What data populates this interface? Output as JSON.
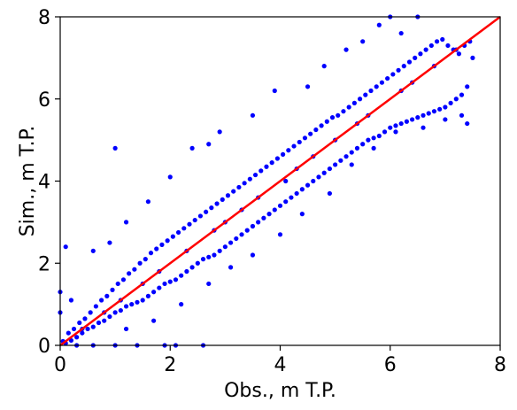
{
  "chart_data": {
    "type": "scatter",
    "title": "",
    "xlabel": "Obs., m T.P.",
    "ylabel": "Sim., m T.P.",
    "xlim": [
      0,
      8
    ],
    "ylim": [
      0,
      8
    ],
    "xticks": [
      "0",
      "2",
      "4",
      "6",
      "8"
    ],
    "yticks": [
      "0",
      "2",
      "4",
      "6",
      "8"
    ],
    "grid": false,
    "legend": "none",
    "marker_color": "#0000ff",
    "reference_line": {
      "x": [
        0,
        8
      ],
      "y": [
        0,
        8
      ],
      "color": "#ff0000"
    },
    "series": [
      {
        "values": [
          [
            0.05,
            0.1
          ],
          [
            0.1,
            0.05
          ],
          [
            0.15,
            0.3
          ],
          [
            0.2,
            0.12
          ],
          [
            0.25,
            0.4
          ],
          [
            0.3,
            0.2
          ],
          [
            0.35,
            0.55
          ],
          [
            0.4,
            0.3
          ],
          [
            0.45,
            0.65
          ],
          [
            0.5,
            0.4
          ],
          [
            0.55,
            0.8
          ],
          [
            0.6,
            0.45
          ],
          [
            0.65,
            0.95
          ],
          [
            0.7,
            0.55
          ],
          [
            0.75,
            1.1
          ],
          [
            0.8,
            0.6
          ],
          [
            0.85,
            1.2
          ],
          [
            0.9,
            0.7
          ],
          [
            0.95,
            1.35
          ],
          [
            1.0,
            0.8
          ],
          [
            1.05,
            1.5
          ],
          [
            1.1,
            0.85
          ],
          [
            1.15,
            1.6
          ],
          [
            1.2,
            0.95
          ],
          [
            1.25,
            1.75
          ],
          [
            1.3,
            1.0
          ],
          [
            1.35,
            1.85
          ],
          [
            1.4,
            1.05
          ],
          [
            1.45,
            2.0
          ],
          [
            1.5,
            1.1
          ],
          [
            1.55,
            2.1
          ],
          [
            1.6,
            1.2
          ],
          [
            1.65,
            2.25
          ],
          [
            1.7,
            1.3
          ],
          [
            1.75,
            2.35
          ],
          [
            1.8,
            1.4
          ],
          [
            1.85,
            2.45
          ],
          [
            1.9,
            1.5
          ],
          [
            1.95,
            2.55
          ],
          [
            2.0,
            1.55
          ],
          [
            2.05,
            2.65
          ],
          [
            2.1,
            1.6
          ],
          [
            2.15,
            2.75
          ],
          [
            2.2,
            1.7
          ],
          [
            2.25,
            2.85
          ],
          [
            2.3,
            1.8
          ],
          [
            2.35,
            2.95
          ],
          [
            2.4,
            1.9
          ],
          [
            2.45,
            3.05
          ],
          [
            2.5,
            2.0
          ],
          [
            2.55,
            3.15
          ],
          [
            2.6,
            2.1
          ],
          [
            2.65,
            3.25
          ],
          [
            2.7,
            2.15
          ],
          [
            2.75,
            3.35
          ],
          [
            2.8,
            2.2
          ],
          [
            2.85,
            3.45
          ],
          [
            2.9,
            2.3
          ],
          [
            2.95,
            3.55
          ],
          [
            3.0,
            2.4
          ],
          [
            3.05,
            3.65
          ],
          [
            3.1,
            2.5
          ],
          [
            3.15,
            3.75
          ],
          [
            3.2,
            2.6
          ],
          [
            3.25,
            3.85
          ],
          [
            3.3,
            2.7
          ],
          [
            3.35,
            3.95
          ],
          [
            3.4,
            2.8
          ],
          [
            3.45,
            4.05
          ],
          [
            3.5,
            2.9
          ],
          [
            3.55,
            4.15
          ],
          [
            3.6,
            3.0
          ],
          [
            3.65,
            4.25
          ],
          [
            3.7,
            3.1
          ],
          [
            3.75,
            4.35
          ],
          [
            3.8,
            3.2
          ],
          [
            3.85,
            4.45
          ],
          [
            3.9,
            3.3
          ],
          [
            3.95,
            4.55
          ],
          [
            4.0,
            3.4
          ],
          [
            4.05,
            4.65
          ],
          [
            4.1,
            3.5
          ],
          [
            4.15,
            4.75
          ],
          [
            4.2,
            3.6
          ],
          [
            4.25,
            4.85
          ],
          [
            4.3,
            3.7
          ],
          [
            4.35,
            4.95
          ],
          [
            4.4,
            3.8
          ],
          [
            4.45,
            5.05
          ],
          [
            4.5,
            3.9
          ],
          [
            4.55,
            5.15
          ],
          [
            4.6,
            4.0
          ],
          [
            4.65,
            5.25
          ],
          [
            4.7,
            4.1
          ],
          [
            4.75,
            5.35
          ],
          [
            4.8,
            4.2
          ],
          [
            4.85,
            5.45
          ],
          [
            4.9,
            4.3
          ],
          [
            4.95,
            5.55
          ],
          [
            5.0,
            4.4
          ],
          [
            5.05,
            5.6
          ],
          [
            5.1,
            4.5
          ],
          [
            5.15,
            5.7
          ],
          [
            5.2,
            4.6
          ],
          [
            5.25,
            5.8
          ],
          [
            5.3,
            4.7
          ],
          [
            5.35,
            5.9
          ],
          [
            5.4,
            4.8
          ],
          [
            5.45,
            6.0
          ],
          [
            5.5,
            4.9
          ],
          [
            5.55,
            6.1
          ],
          [
            5.6,
            5.0
          ],
          [
            5.65,
            6.2
          ],
          [
            5.7,
            5.05
          ],
          [
            5.75,
            6.3
          ],
          [
            5.8,
            5.1
          ],
          [
            5.85,
            6.4
          ],
          [
            5.9,
            5.2
          ],
          [
            5.95,
            6.5
          ],
          [
            6.0,
            5.3
          ],
          [
            6.05,
            6.6
          ],
          [
            6.1,
            5.35
          ],
          [
            6.15,
            6.7
          ],
          [
            6.2,
            5.4
          ],
          [
            6.25,
            6.8
          ],
          [
            6.3,
            5.45
          ],
          [
            6.35,
            6.9
          ],
          [
            6.4,
            5.5
          ],
          [
            6.45,
            7.0
          ],
          [
            6.5,
            5.55
          ],
          [
            6.55,
            7.1
          ],
          [
            6.6,
            5.6
          ],
          [
            6.65,
            7.2
          ],
          [
            6.7,
            5.65
          ],
          [
            6.75,
            7.3
          ],
          [
            6.8,
            5.7
          ],
          [
            6.85,
            7.4
          ],
          [
            6.9,
            5.75
          ],
          [
            6.95,
            7.45
          ],
          [
            7.0,
            5.8
          ],
          [
            7.05,
            7.3
          ],
          [
            7.1,
            5.9
          ],
          [
            7.15,
            7.2
          ],
          [
            7.2,
            6.0
          ],
          [
            7.25,
            7.1
          ],
          [
            7.3,
            6.1
          ],
          [
            7.35,
            7.3
          ],
          [
            7.4,
            6.3
          ],
          [
            7.45,
            7.4
          ],
          [
            7.5,
            7.0
          ],
          [
            7.3,
            5.6
          ],
          [
            7.4,
            5.4
          ],
          [
            1.0,
            4.8
          ],
          [
            6.0,
            8.0
          ],
          [
            6.5,
            8.0
          ],
          [
            5.8,
            7.8
          ],
          [
            6.2,
            7.6
          ],
          [
            5.5,
            7.4
          ],
          [
            5.2,
            7.2
          ],
          [
            4.8,
            6.8
          ],
          [
            4.5,
            6.3
          ],
          [
            3.9,
            6.2
          ],
          [
            3.5,
            5.6
          ],
          [
            2.9,
            5.2
          ],
          [
            2.7,
            4.9
          ],
          [
            2.4,
            4.8
          ],
          [
            2.0,
            4.1
          ],
          [
            1.6,
            3.5
          ],
          [
            1.2,
            3.0
          ],
          [
            0.9,
            2.5
          ],
          [
            0.6,
            2.3
          ],
          [
            0.1,
            2.4
          ],
          [
            0.2,
            1.1
          ],
          [
            0.0,
            1.3
          ],
          [
            0.0,
            0.8
          ],
          [
            0.3,
            0.0
          ],
          [
            0.6,
            0.0
          ],
          [
            1.0,
            0.0
          ],
          [
            1.4,
            0.0
          ],
          [
            1.9,
            0.0
          ],
          [
            2.1,
            0.0
          ],
          [
            2.6,
            0.0
          ],
          [
            1.2,
            0.4
          ],
          [
            1.7,
            0.6
          ],
          [
            2.2,
            1.0
          ],
          [
            2.7,
            1.5
          ],
          [
            3.1,
            1.9
          ],
          [
            3.5,
            2.2
          ],
          [
            4.0,
            2.7
          ],
          [
            4.4,
            3.2
          ],
          [
            4.9,
            3.7
          ],
          [
            5.3,
            4.4
          ],
          [
            5.7,
            4.8
          ],
          [
            6.1,
            5.2
          ],
          [
            6.6,
            5.3
          ],
          [
            7.0,
            5.5
          ],
          [
            2.3,
            2.3
          ],
          [
            3.0,
            3.0
          ],
          [
            4.1,
            4.0
          ],
          [
            5.0,
            5.0
          ],
          [
            1.5,
            1.5
          ],
          [
            0.8,
            0.8
          ],
          [
            3.6,
            3.6
          ],
          [
            4.6,
            4.6
          ],
          [
            5.6,
            5.6
          ],
          [
            6.4,
            6.4
          ],
          [
            6.8,
            6.8
          ],
          [
            2.8,
            2.8
          ],
          [
            1.8,
            1.8
          ],
          [
            1.1,
            1.1
          ],
          [
            0.4,
            0.4
          ],
          [
            3.3,
            3.3
          ],
          [
            4.3,
            4.3
          ],
          [
            5.4,
            5.4
          ],
          [
            6.2,
            6.2
          ],
          [
            7.2,
            7.2
          ]
        ]
      }
    ]
  }
}
